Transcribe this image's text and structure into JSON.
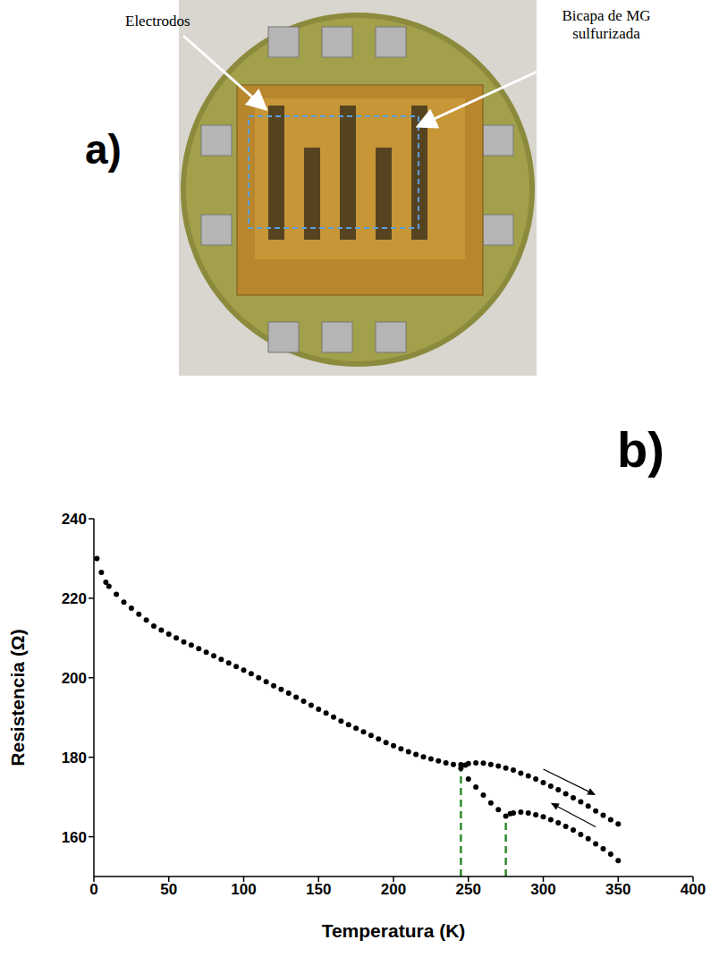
{
  "panel_a": {
    "label": "a)",
    "annotations": [
      "Electrodos",
      "Bicapa de MG sulfurizada"
    ]
  },
  "chart_data": {
    "type": "scatter",
    "title": "b)",
    "x_label": "Temperatura (K)",
    "y_label": "Resistencia (Ω)",
    "xlim": [
      0,
      400
    ],
    "xticks": [
      0,
      50,
      100,
      150,
      200,
      250,
      300,
      350,
      400
    ],
    "ylim": [
      150,
      240
    ],
    "yticks": [
      160,
      180,
      200,
      220,
      240
    ],
    "grid": false,
    "series": [
      {
        "color": "#000000",
        "marker": "o",
        "x": [
          2,
          5,
          8,
          10,
          15,
          20,
          25,
          30,
          35,
          40,
          45,
          50,
          55,
          60,
          65,
          70,
          75,
          80,
          85,
          90,
          95,
          100,
          105,
          110,
          115,
          120,
          125,
          130,
          135,
          140,
          145,
          150,
          155,
          160,
          165,
          170,
          175,
          180,
          185,
          190,
          195,
          200,
          205,
          210,
          215,
          220,
          225,
          230,
          235,
          240,
          245,
          250,
          255,
          260,
          265,
          270,
          275,
          278,
          280,
          285,
          290,
          295,
          300,
          305,
          310,
          315,
          320,
          325,
          330,
          335,
          340,
          345,
          350
        ],
        "values": [
          230,
          226.5,
          224,
          223,
          221,
          219,
          217.5,
          216,
          214.5,
          213,
          212,
          211,
          210,
          209,
          208.2,
          207.3,
          206.4,
          205.5,
          204.6,
          203.7,
          202.8,
          201.9,
          201,
          200,
          199,
          198,
          197.1,
          196.1,
          195.1,
          194.1,
          193.1,
          192.1,
          191.1,
          190.1,
          189.1,
          188.2,
          187.3,
          186.4,
          185.5,
          184.6,
          183.7,
          182.9,
          182.1,
          181.4,
          180.7,
          180.1,
          179.6,
          179.1,
          178.6,
          178.2,
          177.2,
          174.5,
          172.5,
          170.5,
          168.5,
          166.8,
          165.2,
          165.8,
          166,
          166.2,
          166,
          165.5,
          165,
          164.3,
          163.5,
          162.6,
          161.7,
          160.6,
          159.5,
          158.2,
          157,
          155.6,
          154
        ]
      },
      {
        "color": "#000000",
        "marker": "o",
        "x": [
          245,
          248,
          250,
          255,
          260,
          265,
          270,
          275,
          280,
          285,
          290,
          295,
          300,
          305,
          310,
          315,
          320,
          325,
          330,
          335,
          340,
          345,
          350
        ],
        "values": [
          178.1,
          178,
          178.4,
          178.6,
          178.5,
          178.2,
          177.8,
          177.3,
          176.8,
          176,
          175.3,
          174.5,
          173.6,
          172.7,
          171.8,
          170.8,
          169.8,
          168.8,
          167.7,
          166.5,
          165.4,
          164.3,
          163.2
        ]
      }
    ],
    "vlines": [
      {
        "x": 245,
        "y": [
          150,
          177.2
        ],
        "color": "#2e8b2e",
        "line_style": "dashed"
      },
      {
        "x": 275,
        "y": [
          150,
          165.2
        ],
        "color": "#2e8b2e",
        "line_style": "dashed"
      }
    ],
    "arrows": [
      {
        "from": [
          300,
          177
        ],
        "to": [
          335,
          170.5
        ]
      },
      {
        "from": [
          335,
          162.5
        ],
        "to": [
          305,
          168.5
        ]
      }
    ]
  }
}
